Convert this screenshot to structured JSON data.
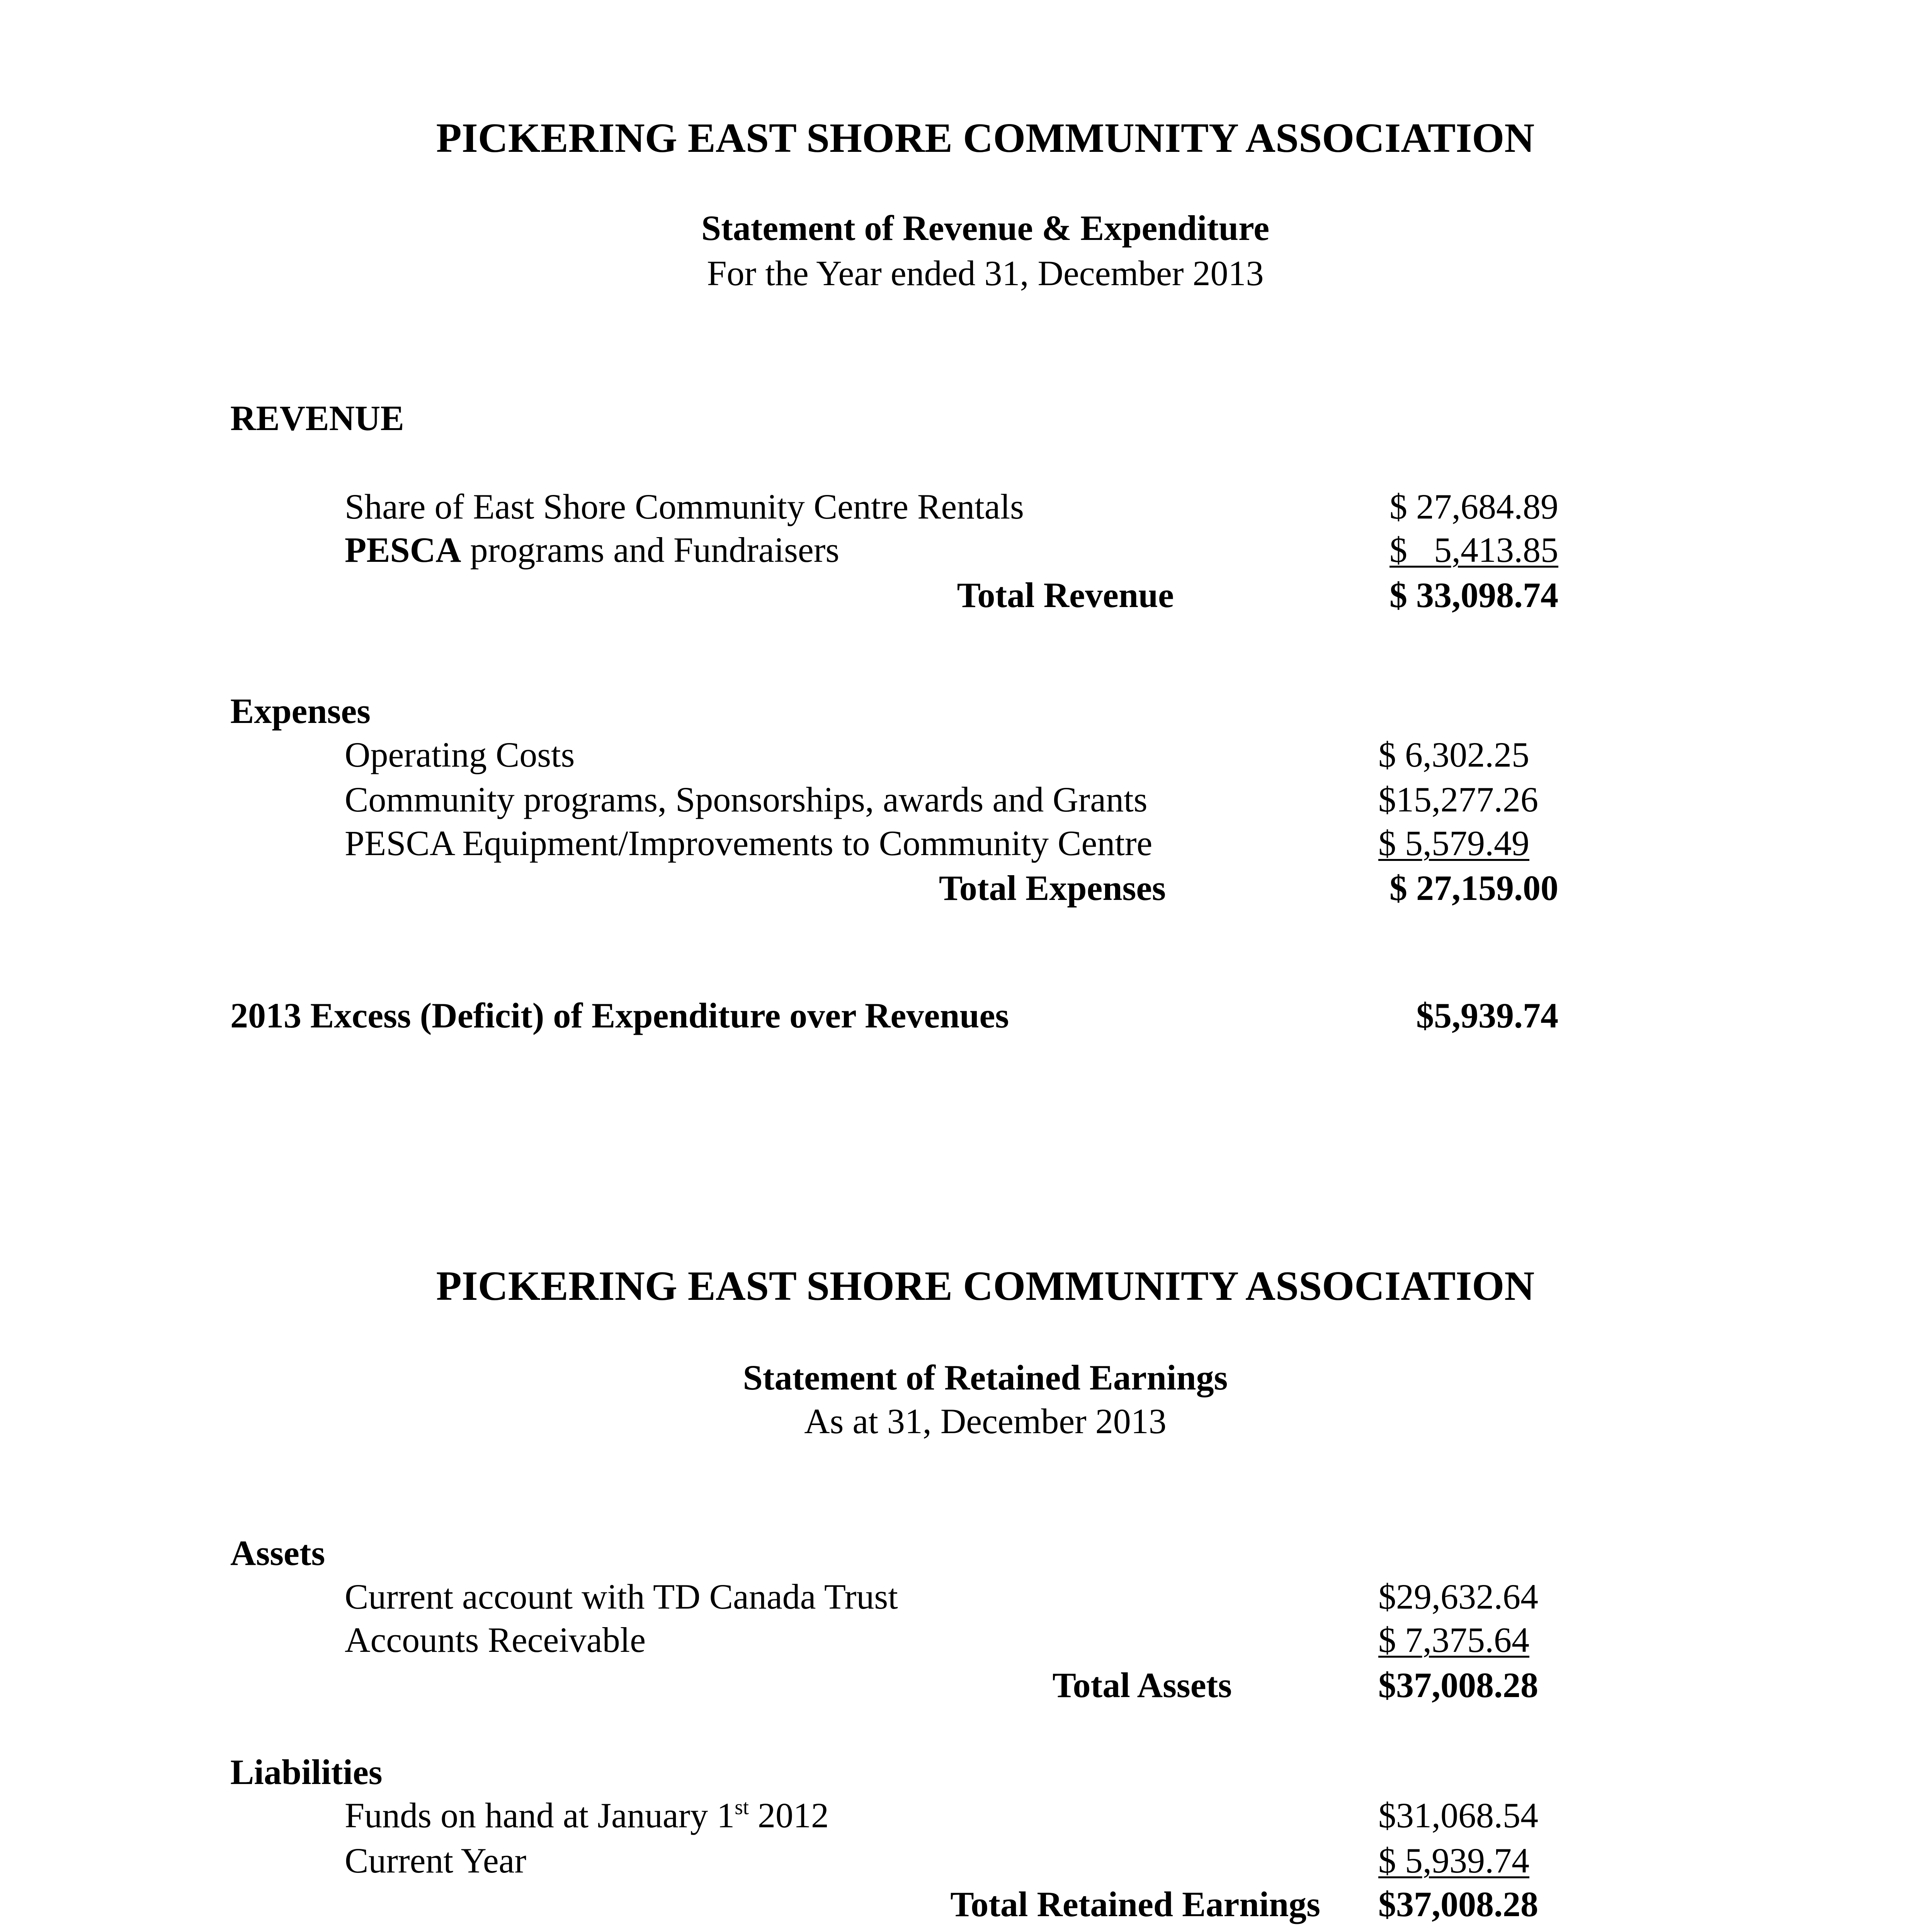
{
  "statement1": {
    "org_title": "PICKERING EAST SHORE COMMUNITY ASSOCIATION",
    "subtitle": "Statement of Revenue & Expenditure",
    "period": "For the Year ended 31, December 2013",
    "revenue": {
      "heading": "REVENUE",
      "items": [
        {
          "label": "Share of East Shore Community Centre Rentals",
          "amount": "$ 27,684.89"
        },
        {
          "label_bold": "PESCA",
          "label": " programs and Fundraisers",
          "amount": "$   5,413.85"
        }
      ],
      "total_label": "Total Revenue",
      "total_amount": "$ 33,098.74"
    },
    "expenses": {
      "heading": "Expenses",
      "items": [
        {
          "label": "Operating Costs",
          "amount": "$ 6,302.25"
        },
        {
          "label": "Community programs, Sponsorships, awards and Grants",
          "amount": "$15,277.26"
        },
        {
          "label": "PESCA Equipment/Improvements to Community Centre",
          "amount": "$ 5,579.49"
        }
      ],
      "total_label": "Total Expenses",
      "total_amount": "$ 27,159.00"
    },
    "excess_label": "2013 Excess (Deficit) of Expenditure over Revenues",
    "excess_amount": "$5,939.74"
  },
  "statement2": {
    "org_title": "PICKERING EAST SHORE COMMUNITY ASSOCIATION",
    "subtitle": "Statement of Retained Earnings",
    "period": "As at 31, December 2013",
    "assets": {
      "heading": "Assets",
      "items": [
        {
          "label": "Current account with TD Canada Trust",
          "amount": "$29,632.64"
        },
        {
          "label": "Accounts Receivable",
          "amount": "$ 7,375.64"
        }
      ],
      "total_label": "Total Assets",
      "total_amount": "$37,008.28"
    },
    "liabilities": {
      "heading": "Liabilities",
      "items": [
        {
          "label": "Funds on hand at January 1",
          "label_sup": "st",
          "label_tail": " 2012",
          "amount": "$31,068.54"
        },
        {
          "label": "Current Year",
          "amount": "$ 5,939.74"
        }
      ],
      "total_label": "Total Retained Earnings",
      "total_amount": "$37,008.28"
    }
  }
}
